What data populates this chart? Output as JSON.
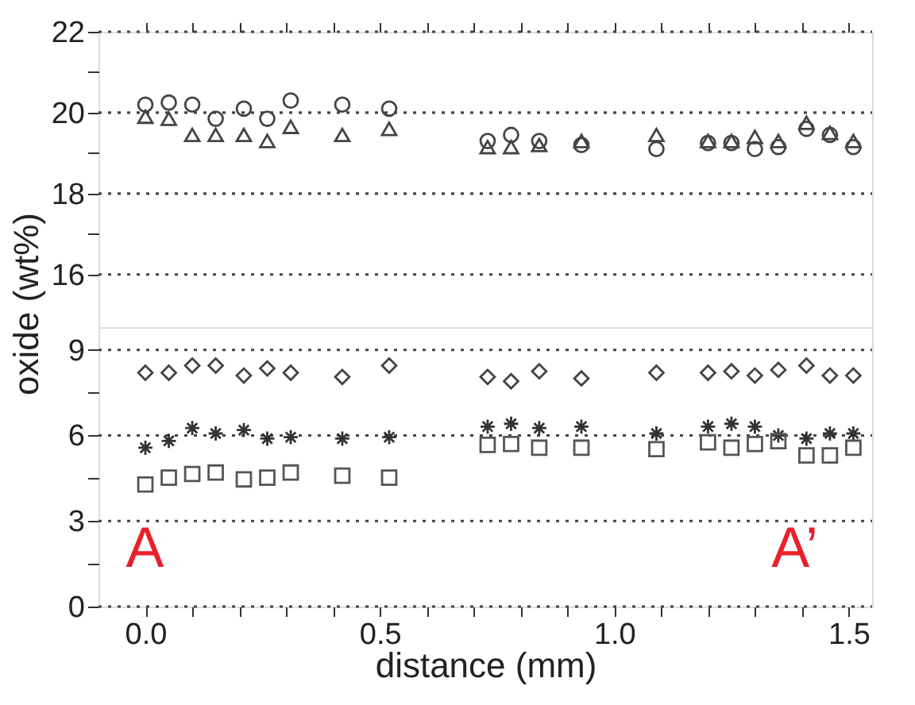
{
  "chart_data": [
    {
      "type": "scatter",
      "tick_labels": "y",
      "grid": "y",
      "xlim": [
        -0.1,
        1.55
      ],
      "xticks": [
        {
          "value": 0,
          "label": null
        },
        {
          "value": 0.1,
          "label": null
        },
        {
          "value": 0.2,
          "label": null
        },
        {
          "value": 0.3,
          "label": null
        },
        {
          "value": 0.4,
          "label": null
        },
        {
          "value": 0.5,
          "label": null
        },
        {
          "value": 0.6,
          "label": null
        },
        {
          "value": 0.7,
          "label": null
        },
        {
          "value": 0.8,
          "label": null
        },
        {
          "value": 0.9,
          "label": null
        },
        {
          "value": 1.0,
          "label": null
        },
        {
          "value": 1.1,
          "label": null
        },
        {
          "value": 1.2,
          "label": null
        },
        {
          "value": 1.3,
          "label": null
        },
        {
          "value": 1.4,
          "label": null
        },
        {
          "value": 1.5,
          "label": null
        }
      ],
      "ylim": [
        14.7,
        22
      ],
      "yticks": [
        16,
        {
          "value": 17,
          "label": null
        },
        18,
        {
          "value": 19,
          "label": null
        },
        20,
        {
          "value": 21,
          "label": null
        },
        22
      ],
      "x": [
        0.0,
        0.05,
        0.1,
        0.15,
        0.21,
        0.26,
        0.31,
        0.42,
        0.52,
        0.73,
        0.78,
        0.84,
        0.93,
        1.09,
        1.2,
        1.25,
        1.3,
        1.35,
        1.41,
        1.46,
        1.51
      ],
      "series": [
        {
          "marker": "circle",
          "color": "#444444",
          "values": [
            20.2,
            20.25,
            20.2,
            19.85,
            20.1,
            19.85,
            20.3,
            20.2,
            20.1,
            19.3,
            19.45,
            19.3,
            19.2,
            19.1,
            19.25,
            19.25,
            19.1,
            19.15,
            19.6,
            19.45,
            19.15
          ]
        },
        {
          "marker": "triangle",
          "color": "#444444",
          "values": [
            19.9,
            19.85,
            19.45,
            19.45,
            19.45,
            19.3,
            19.65,
            19.45,
            19.6,
            19.15,
            19.15,
            19.2,
            19.3,
            19.45,
            19.3,
            19.3,
            19.4,
            19.3,
            19.75,
            19.5,
            19.3
          ]
        }
      ]
    },
    {
      "type": "scatter",
      "grid": "y",
      "xlabel": "distance (mm)",
      "ylabel": "oxide (wt%)",
      "xlim": [
        -0.1,
        1.55
      ],
      "xticks": [
        {
          "value": 0,
          "label": "0.0"
        },
        {
          "value": 0.1,
          "label": null
        },
        {
          "value": 0.2,
          "label": null
        },
        {
          "value": 0.3,
          "label": null
        },
        {
          "value": 0.4,
          "label": null
        },
        0.5,
        {
          "value": 0.6,
          "label": null
        },
        {
          "value": 0.7,
          "label": null
        },
        {
          "value": 0.8,
          "label": null
        },
        {
          "value": 0.9,
          "label": null
        },
        {
          "value": 1.0,
          "label": "1.0"
        },
        {
          "value": 1.1,
          "label": null
        },
        {
          "value": 1.2,
          "label": null
        },
        {
          "value": 1.3,
          "label": null
        },
        {
          "value": 1.4,
          "label": null
        },
        1.5
      ],
      "ylim": [
        0,
        9.8
      ],
      "yticks": [
        0,
        {
          "value": 1.5,
          "label": null
        },
        3,
        {
          "value": 4.5,
          "label": null
        },
        6,
        {
          "value": 7.5,
          "label": null
        },
        9
      ],
      "x": [
        0.0,
        0.05,
        0.1,
        0.15,
        0.21,
        0.26,
        0.31,
        0.42,
        0.52,
        0.73,
        0.78,
        0.84,
        0.93,
        1.09,
        1.2,
        1.25,
        1.3,
        1.35,
        1.41,
        1.46,
        1.51
      ],
      "series": [
        {
          "marker": "diamond",
          "color": "#444444",
          "values": [
            8.2,
            8.2,
            8.45,
            8.45,
            8.1,
            8.35,
            8.2,
            8.05,
            8.45,
            8.05,
            7.9,
            8.25,
            8.0,
            8.2,
            8.2,
            8.25,
            8.1,
            8.3,
            8.45,
            8.1,
            8.1
          ]
        },
        {
          "marker": "cross",
          "color": "#333333",
          "values": [
            5.57,
            5.81,
            6.26,
            6.07,
            6.19,
            5.89,
            5.94,
            5.89,
            5.94,
            6.31,
            6.41,
            6.26,
            6.31,
            6.07,
            6.31,
            6.41,
            6.31,
            6.0,
            5.89,
            6.07,
            6.07
          ]
        },
        {
          "marker": "square",
          "color": "#555555",
          "values": [
            4.28,
            4.52,
            4.65,
            4.7,
            4.46,
            4.52,
            4.7,
            4.59,
            4.52,
            5.67,
            5.7,
            5.57,
            5.57,
            5.52,
            5.76,
            5.57,
            5.7,
            5.8,
            5.3,
            5.3,
            5.57
          ]
        }
      ],
      "annotations": [
        "A",
        "A’"
      ]
    }
  ]
}
